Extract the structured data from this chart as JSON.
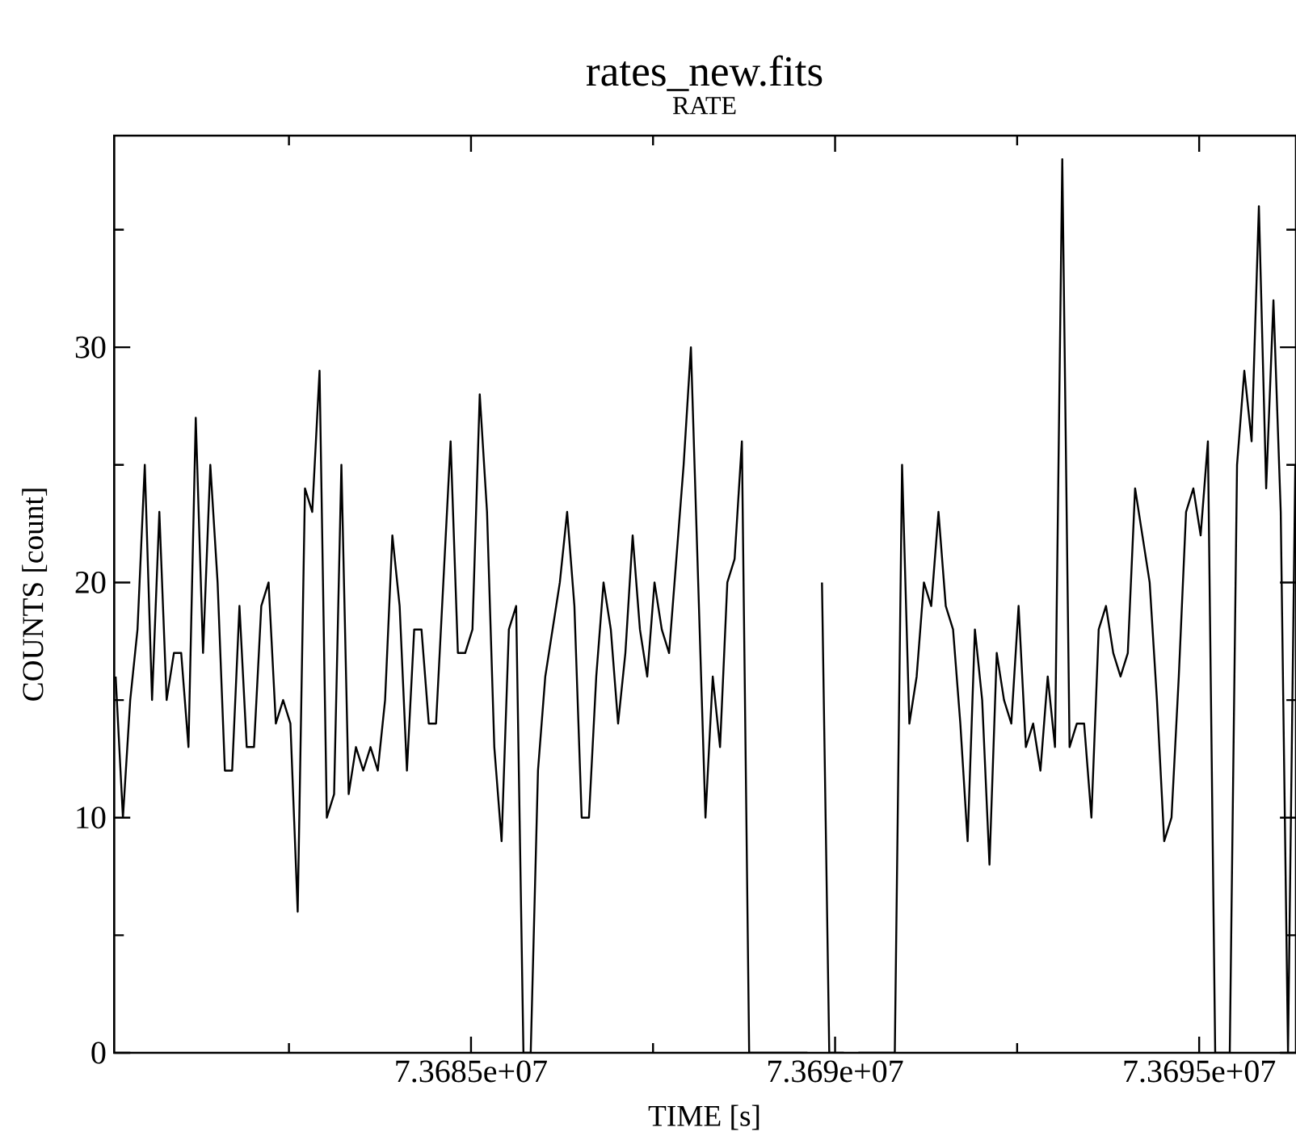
{
  "chart_data": {
    "type": "line",
    "title": "rates_new.fits",
    "subtitle": "RATE",
    "xlabel": "TIME [s]",
    "ylabel": "COUNTS [count]",
    "x": [
      73680120,
      73680220,
      73680320,
      73680420,
      73680520,
      73680620,
      73680720,
      73680820,
      73680920,
      73681020,
      73681120,
      73681220,
      73681320,
      73681420,
      73681520,
      73681620,
      73681720,
      73681820,
      73681920,
      73682020,
      73682120,
      73682220,
      73682320,
      73682420,
      73682520,
      73682620,
      73682720,
      73682820,
      73682920,
      73683020,
      73683120,
      73683220,
      73683320,
      73683420,
      73683520,
      73683620,
      73683720,
      73683820,
      73683920,
      73684020,
      73684120,
      73684220,
      73684320,
      73684420,
      73684520,
      73684620,
      73684720,
      73684820,
      73684920,
      73685020,
      73685120,
      73685220,
      73685320,
      73685420,
      73685520,
      73685620,
      73685720,
      73685820,
      73685920,
      73686020,
      73686120,
      73686220,
      73686320,
      73686420,
      73686520,
      73686620,
      73686720,
      73686820,
      73686920,
      73687020,
      73687120,
      73687220,
      73687320,
      73687420,
      73687520,
      73687620,
      73687720,
      73687820,
      73687920,
      73688020,
      73688120,
      73688220,
      73688320,
      73688420,
      73688520,
      73688620,
      73688720,
      73688820,
      73688920,
      73689020,
      73689120,
      73689220,
      73689320,
      73689420,
      73689520,
      73689620,
      73689720,
      73689820,
      73689920,
      73690020,
      73690120,
      73690220,
      73690320,
      73690420,
      73690520,
      73690620,
      73690720,
      73690820,
      73690920,
      73691020,
      73691120,
      73691220,
      73691320,
      73691420,
      73691520,
      73691620,
      73691720,
      73691820,
      73691920,
      73692020,
      73692120,
      73692220,
      73692320,
      73692420,
      73692520,
      73692620,
      73692720,
      73692820,
      73692920,
      73693020,
      73693120,
      73693220,
      73693320,
      73693420,
      73693520,
      73693620,
      73693720,
      73693820,
      73693920,
      73694020,
      73694120,
      73694220,
      73694320,
      73694420,
      73694520,
      73694620,
      73694720,
      73694820,
      73694920,
      73695020,
      73695120,
      73695220,
      73695320,
      73695420,
      73695520,
      73695620,
      73695720,
      73695820,
      73695920,
      73696020,
      73696120,
      73696220,
      73696320
    ],
    "values": [
      16,
      10,
      15,
      18,
      25,
      15,
      23,
      15,
      17,
      17,
      13,
      27,
      17,
      25,
      20,
      12,
      12,
      19,
      13,
      13,
      19,
      20,
      14,
      15,
      14,
      6,
      24,
      23,
      29,
      10,
      11,
      25,
      11,
      13,
      12,
      13,
      12,
      15,
      22,
      19,
      12,
      18,
      18,
      14,
      14,
      20,
      26,
      17,
      17,
      18,
      28,
      23,
      13,
      9,
      18,
      19,
      0,
      0,
      12,
      16,
      18,
      20,
      23,
      19,
      10,
      10,
      16,
      20,
      18,
      14,
      17,
      22,
      18,
      16,
      20,
      18,
      17,
      21,
      25,
      30,
      20,
      10,
      16,
      13,
      20,
      21,
      26,
      0,
      0,
      0,
      0,
      0,
      0,
      0,
      0,
      0,
      null,
      20,
      0,
      0,
      0,
      null,
      0,
      0,
      0,
      0,
      0,
      0,
      25,
      14,
      16,
      20,
      19,
      23,
      19,
      18,
      14,
      9,
      18,
      15,
      8,
      17,
      15,
      14,
      19,
      13,
      14,
      12,
      16,
      13,
      38,
      13,
      14,
      14,
      10,
      18,
      19,
      17,
      16,
      17,
      24,
      22,
      20,
      15,
      9,
      10,
      16,
      23,
      24,
      22,
      26,
      0,
      0,
      0,
      25,
      29,
      26,
      36,
      24,
      32,
      23,
      0,
      25
    ],
    "color": "#000000",
    "xlim": [
      73680100,
      73696330
    ],
    "ylim": [
      0,
      39
    ],
    "xticks": [
      {
        "value": 73682500,
        "label": null
      },
      {
        "value": 73685000,
        "label": "7.3685e+07"
      },
      {
        "value": 73687500,
        "label": null
      },
      {
        "value": 73690000,
        "label": "7.369e+07"
      },
      {
        "value": 73692500,
        "label": null
      },
      {
        "value": 73695000,
        "label": "7.3695e+07"
      }
    ],
    "yticks": [
      0,
      {
        "value": 5,
        "label": null
      },
      10,
      {
        "value": 15,
        "label": null
      },
      20,
      {
        "value": 25,
        "label": null
      },
      30,
      {
        "value": 35,
        "label": null
      }
    ]
  }
}
